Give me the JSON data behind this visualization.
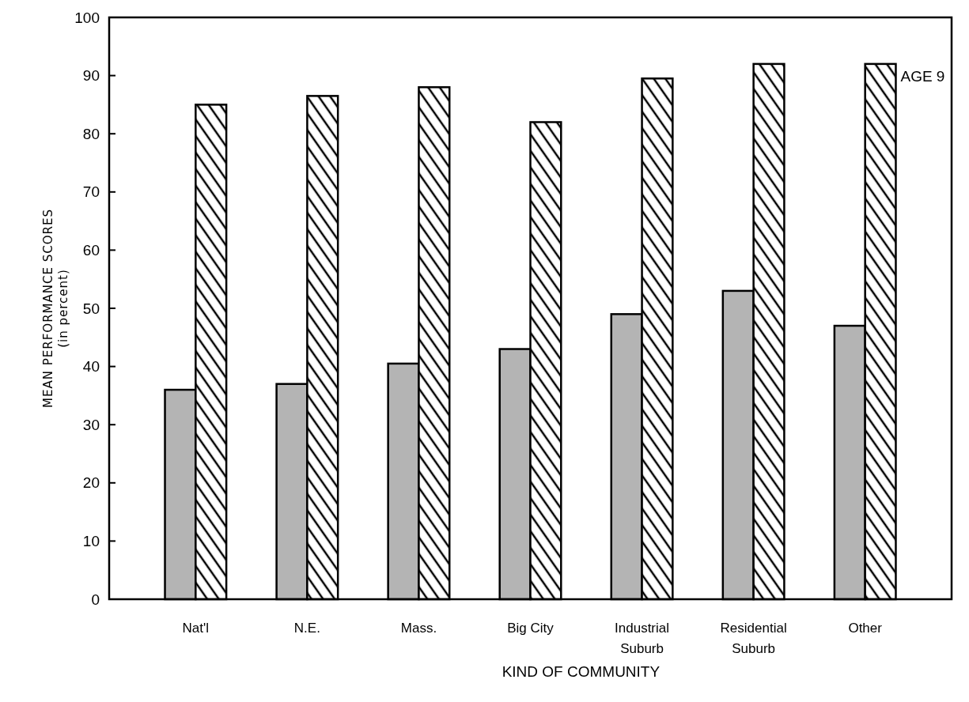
{
  "chart_data": {
    "type": "bar",
    "xlabel": "KIND OF COMMUNITY",
    "ylabel": "MEAN PERFORMANCE SCORES\n(in percent)",
    "categories": [
      "Nat'l",
      "N.E.",
      "Mass.",
      "Big City",
      "Industrial Suburb",
      "Residential Suburb",
      "Other"
    ],
    "series": [
      {
        "color": "#b4b4b4",
        "values": [
          36,
          37,
          40.5,
          43,
          49,
          53,
          47
        ]
      },
      {
        "name": "AGE 9",
        "color": "#000000",
        "values": [
          85,
          86.5,
          88,
          82,
          89.5,
          92,
          92
        ]
      }
    ],
    "ylim": [
      0,
      100
    ],
    "yticks": [
      0,
      10,
      20,
      30,
      40,
      50,
      60,
      70,
      80,
      90,
      100
    ],
    "grid": false
  }
}
